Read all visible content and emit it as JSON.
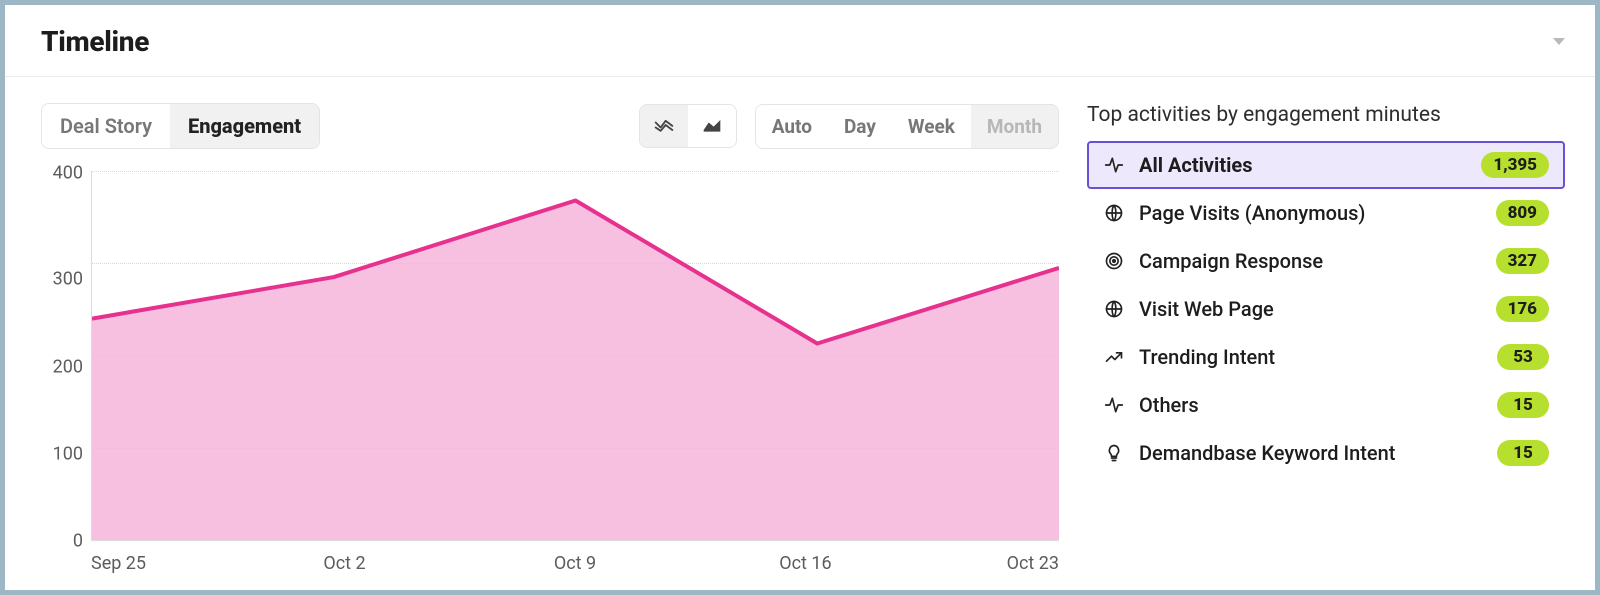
{
  "title": "Timeline",
  "view_tabs": {
    "items": [
      "Deal Story",
      "Engagement"
    ],
    "active_index": 1
  },
  "chart_mode": {
    "active_index": 0
  },
  "grain": {
    "items": [
      "Auto",
      "Day",
      "Week",
      "Month"
    ],
    "active_index": 3
  },
  "chart": {
    "type": "area",
    "ylim": [
      0,
      400
    ],
    "yticks": [
      400,
      300,
      200,
      100,
      0
    ],
    "xlabels": [
      "Sep 25",
      "Oct 2",
      "Oct 9",
      "Oct 16",
      "Oct 23"
    ],
    "values": [
      240,
      285,
      368,
      213,
      295
    ],
    "line_color": "#e6318e",
    "fill_color": "#f6b4da",
    "fill_opacity": 0.85,
    "line_width": 4,
    "grid_color": "#d8d8d8",
    "background_color": "#ffffff"
  },
  "sidebar": {
    "title": "Top activities by engagement minutes",
    "badge_bg": "#b7df2d",
    "selected_bg": "#ede8fb",
    "selected_border": "#6b4fd6",
    "items": [
      {
        "icon": "pulse",
        "label": "All Activities",
        "value": "1,395",
        "selected": true
      },
      {
        "icon": "globe",
        "label": "Page Visits (Anonymous)",
        "value": "809",
        "selected": false
      },
      {
        "icon": "target",
        "label": "Campaign Response",
        "value": "327",
        "selected": false
      },
      {
        "icon": "globe",
        "label": "Visit Web Page",
        "value": "176",
        "selected": false
      },
      {
        "icon": "trend",
        "label": "Trending Intent",
        "value": "53",
        "selected": false
      },
      {
        "icon": "pulse",
        "label": "Others",
        "value": "15",
        "selected": false
      },
      {
        "icon": "bulb",
        "label": "Demandbase Keyword Intent",
        "value": "15",
        "selected": false
      }
    ]
  }
}
